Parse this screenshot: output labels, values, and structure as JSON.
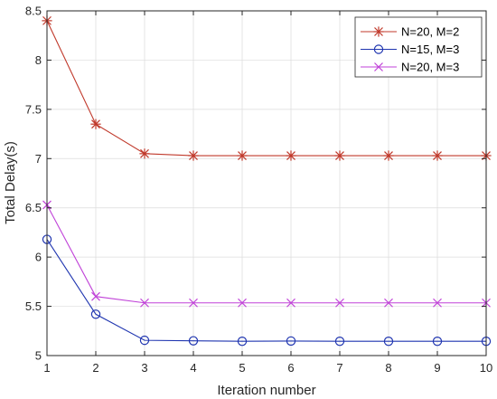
{
  "chart_data": {
    "type": "line",
    "title": "",
    "xlabel": "Iteration number",
    "ylabel": "Total Delay(s)",
    "xlim": [
      1,
      10
    ],
    "ylim": [
      5,
      8.5
    ],
    "x": [
      1,
      2,
      3,
      4,
      5,
      6,
      7,
      8,
      9,
      10
    ],
    "xticks": [
      "1",
      "2",
      "3",
      "4",
      "5",
      "6",
      "7",
      "8",
      "9",
      "10"
    ],
    "yticks": [
      "5",
      "5.5",
      "6",
      "6.5",
      "7",
      "7.5",
      "8",
      "8.5"
    ],
    "grid": true,
    "legend_position": "top-right",
    "series": [
      {
        "name": "N=20, M=2",
        "color": "#c0392b",
        "marker": "asterisk",
        "values": [
          8.4,
          7.35,
          7.05,
          7.03,
          7.03,
          7.03,
          7.03,
          7.03,
          7.03,
          7.03
        ]
      },
      {
        "name": "N=15, M=3",
        "color": "#1f35b0",
        "marker": "circle",
        "values": [
          6.18,
          5.42,
          5.155,
          5.15,
          5.145,
          5.148,
          5.145,
          5.145,
          5.145,
          5.145
        ]
      },
      {
        "name": "N=20, M=3",
        "color": "#c042d8",
        "marker": "x",
        "values": [
          6.53,
          5.6,
          5.535,
          5.535,
          5.535,
          5.535,
          5.535,
          5.535,
          5.535,
          5.535
        ]
      }
    ]
  }
}
